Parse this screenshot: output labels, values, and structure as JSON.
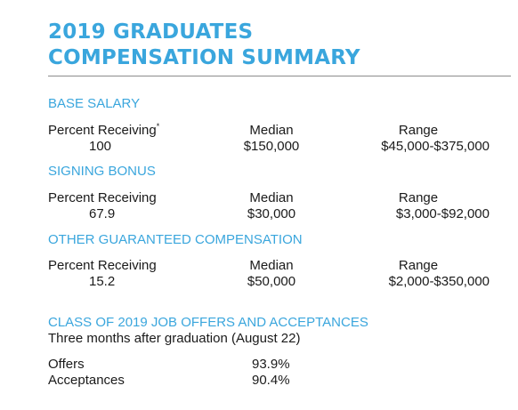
{
  "title": {
    "line1": "2019 GRADUATES",
    "line2": "COMPENSATION SUMMARY"
  },
  "columns": {
    "percent": "Percent Receiving",
    "median": "Median",
    "range": "Range"
  },
  "sections": [
    {
      "heading": "BASE SALARY",
      "percent_label": "Percent Receiving",
      "percent_footnote": "*",
      "percent": "100",
      "median": "$150,000",
      "range": "$45,000-$375,000"
    },
    {
      "heading": "SIGNING BONUS",
      "percent_label": "Percent Receiving",
      "percent": "67.9",
      "median": "$30,000",
      "range": "$3,000-$92,000"
    },
    {
      "heading": "OTHER GUARANTEED COMPENSATION",
      "percent_label": "Percent Receiving",
      "percent": "15.2",
      "median": "$50,000",
      "range": "$2,000-$350,000"
    }
  ],
  "offers": {
    "heading": "CLASS OF 2019 JOB OFFERS AND ACCEPTANCES",
    "subheading": "Three months after graduation (August 22)",
    "rows": [
      {
        "label": "Offers",
        "value": "93.9%"
      },
      {
        "label": "Acceptances",
        "value": "90.4%"
      }
    ]
  },
  "colors": {
    "accent": "#3aa6dd",
    "text": "#1a1a1a",
    "rule": "#8c8c8c"
  }
}
